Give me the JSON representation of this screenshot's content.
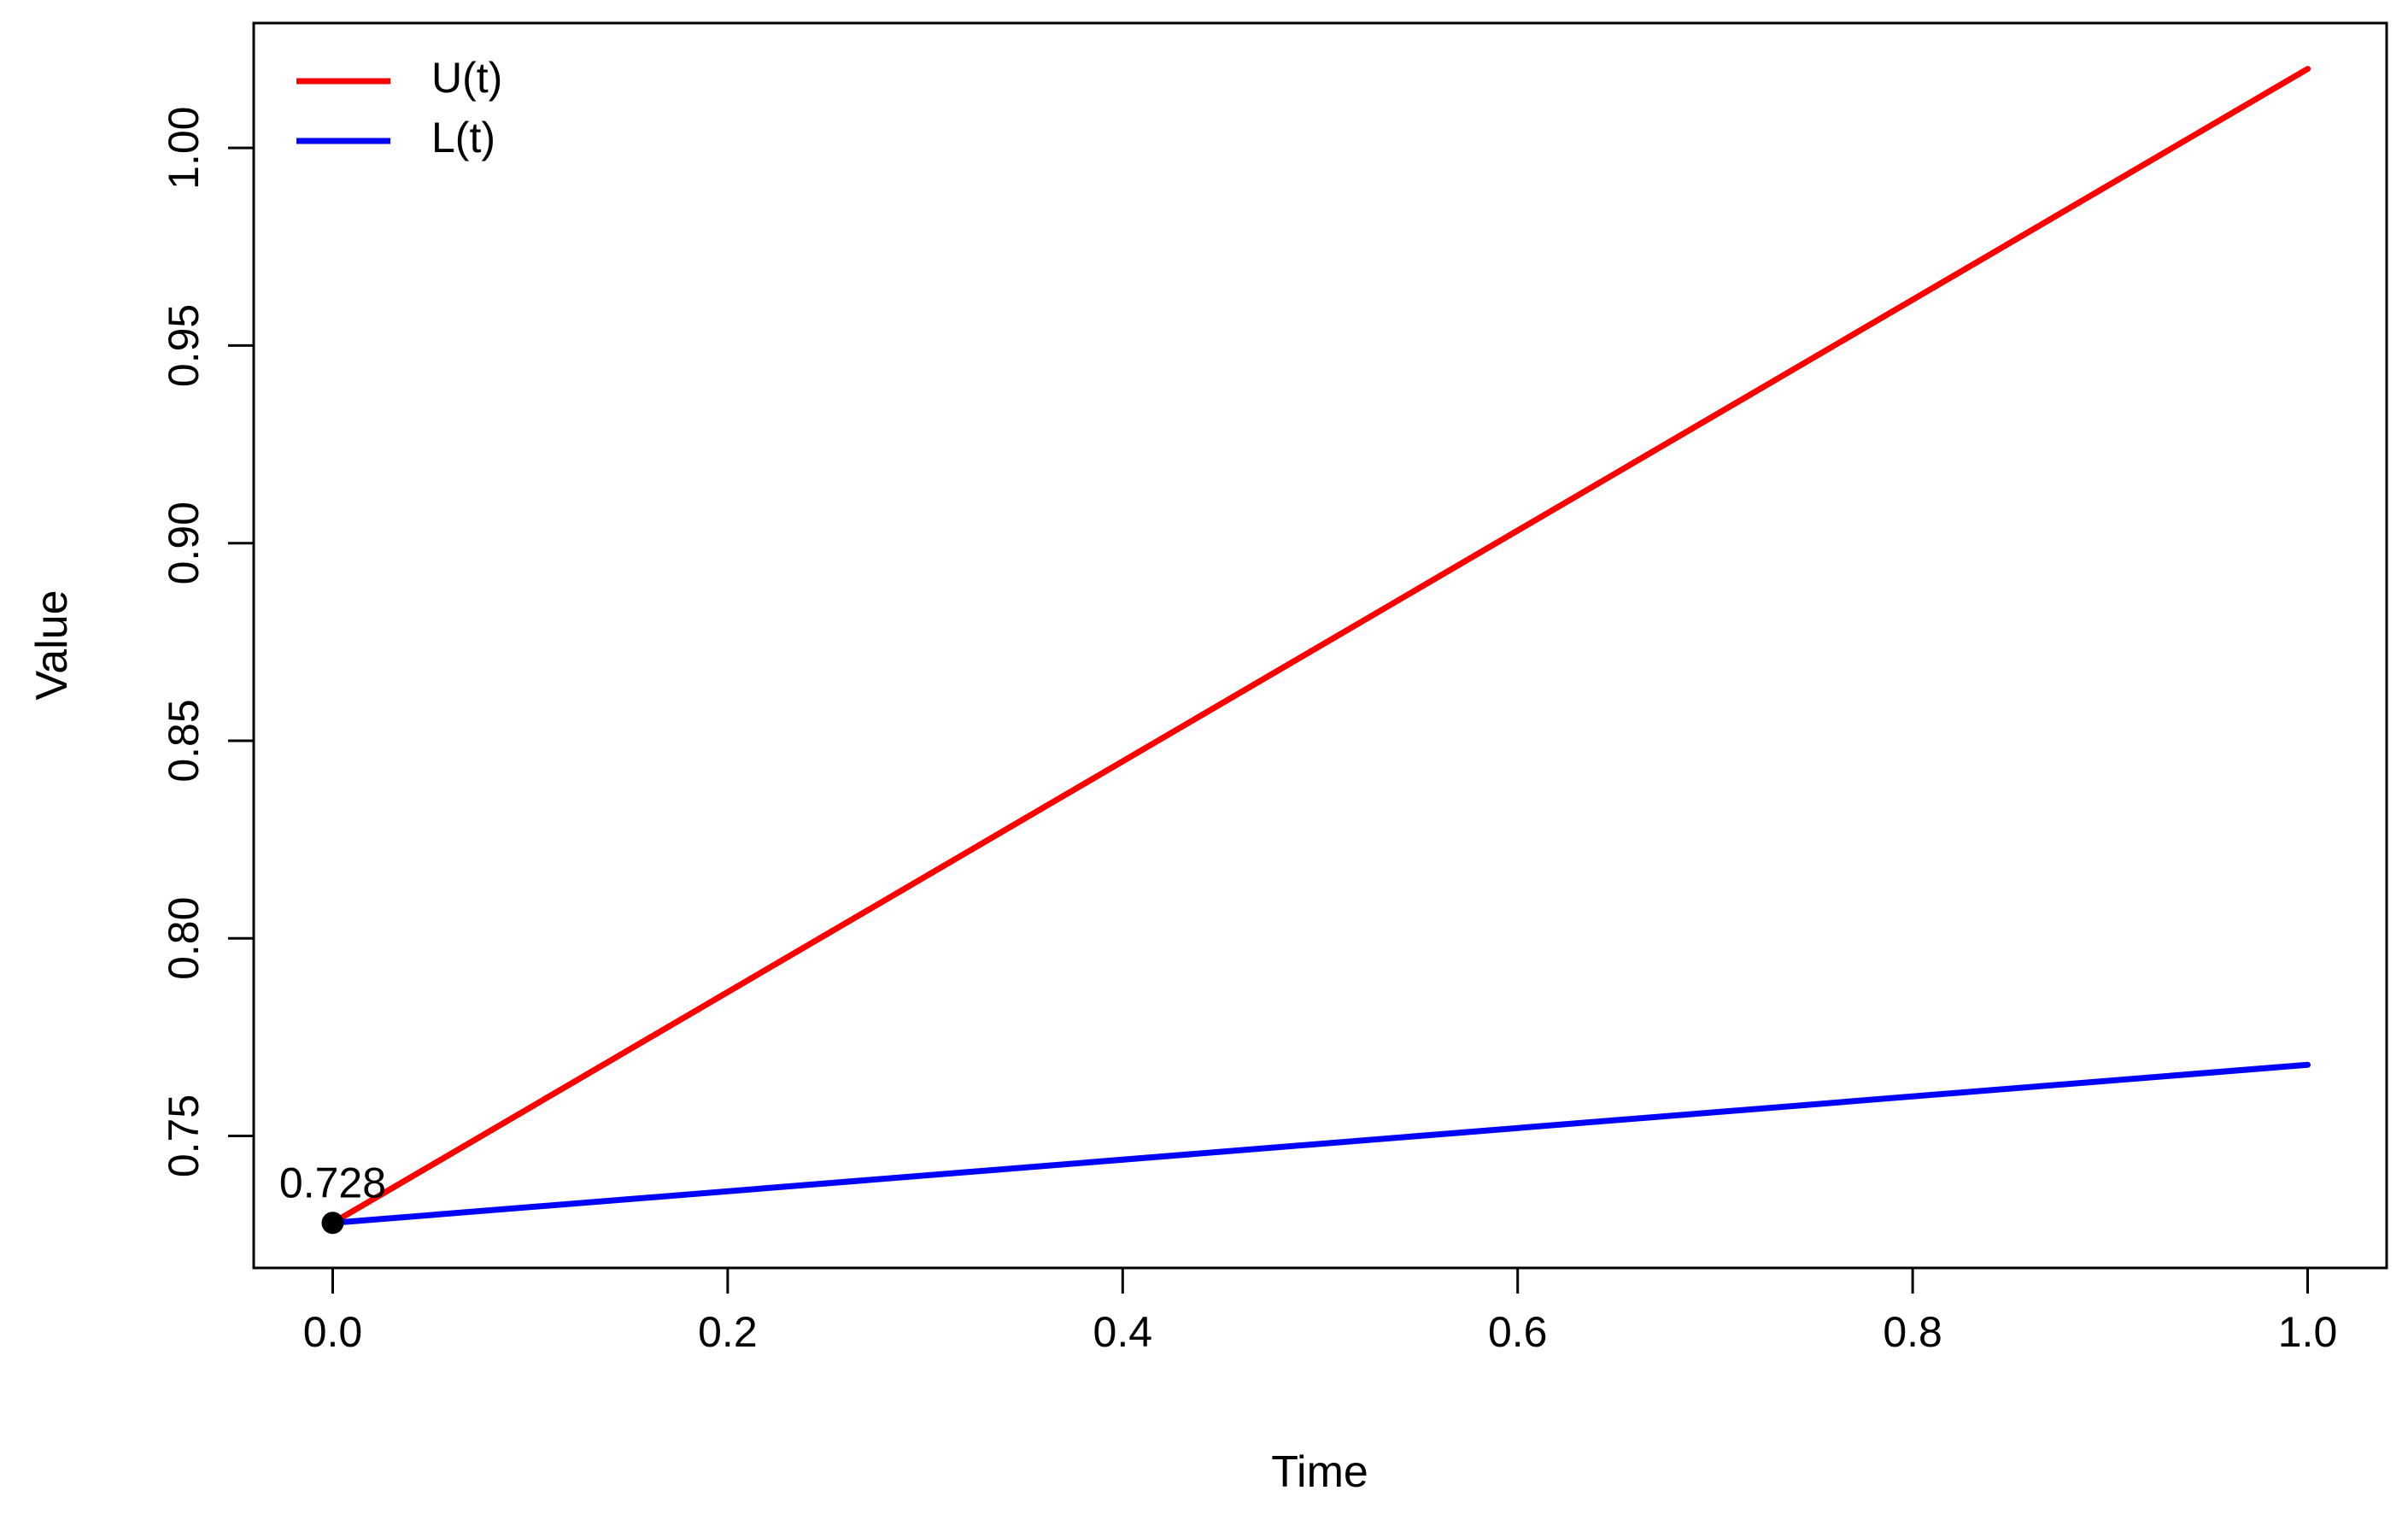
{
  "chart_data": {
    "type": "line",
    "title": "",
    "xlabel": "Time",
    "ylabel": "Value",
    "xlim": [
      -0.04,
      1.04
    ],
    "ylim": [
      0.7166,
      1.0316
    ],
    "x_ticks": [
      0.0,
      0.2,
      0.4,
      0.6,
      0.8,
      1.0
    ],
    "x_tick_labels": [
      "0.0",
      "0.2",
      "0.4",
      "0.6",
      "0.8",
      "1.0"
    ],
    "y_ticks": [
      0.75,
      0.8,
      0.85,
      0.9,
      0.95,
      1.0
    ],
    "y_tick_labels": [
      "0.75",
      "0.80",
      "0.85",
      "0.90",
      "0.95",
      "1.00"
    ],
    "grid": false,
    "legend_position": "top-left",
    "series": [
      {
        "name": "U(t)",
        "color": "#ff0000",
        "x": [
          0.0,
          1.0
        ],
        "y": [
          0.728,
          1.02
        ]
      },
      {
        "name": "L(t)",
        "color": "#0000ff",
        "x": [
          0.0,
          1.0
        ],
        "y": [
          0.728,
          0.768
        ]
      }
    ],
    "point": {
      "x": 0.0,
      "y": 0.728,
      "label": "0.728",
      "color": "#000000"
    }
  }
}
